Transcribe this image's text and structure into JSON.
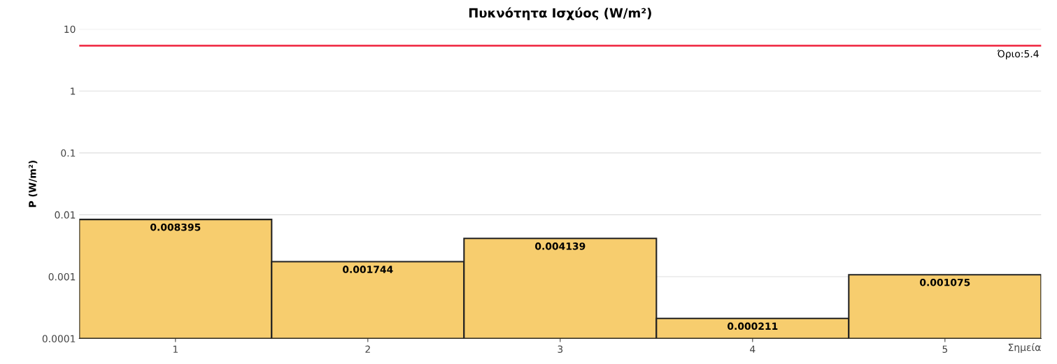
{
  "chart_data": {
    "type": "bar",
    "title": "Πυκνότητα Ισχύος (W/m²)",
    "xlabel": "Σημεία",
    "ylabel": "P (W/m²)",
    "categories": [
      "1",
      "2",
      "3",
      "4",
      "5"
    ],
    "values": [
      0.008395,
      0.001744,
      0.004139,
      0.000211,
      0.001075
    ],
    "color": "#f7cd6e",
    "data_labels": true,
    "log": true,
    "ylim": [
      0.0001,
      10
    ],
    "yticks": [
      0.0001,
      0.001,
      0.01,
      0.1,
      1,
      10
    ],
    "grid": "y",
    "ref_lines": [
      {
        "axis": "y",
        "value": 5.4,
        "label": "Όριο:5.4",
        "color": "#f0334b"
      }
    ]
  }
}
